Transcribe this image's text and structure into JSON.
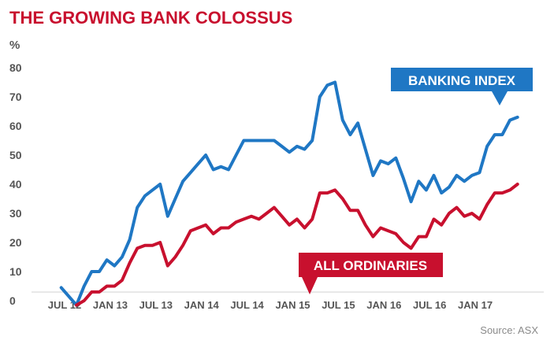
{
  "header": {
    "title": "THE GROWING BANK COLOSSUS",
    "title_color": "#c8102e"
  },
  "source": "Source: ASX",
  "chart_data": {
    "type": "line",
    "title": "THE GROWING BANK COLOSSUS",
    "xlabel": "",
    "ylabel": "%",
    "ylim": [
      0,
      80
    ],
    "y_ticks": [
      "0",
      "10",
      "20",
      "30",
      "40",
      "50",
      "60",
      "70",
      "80"
    ],
    "x_ticks": [
      {
        "label": "JUL 12",
        "x": 0
      },
      {
        "label": "JAN 13",
        "x": 6
      },
      {
        "label": "JUL 13",
        "x": 12
      },
      {
        "label": "JAN 14",
        "x": 18
      },
      {
        "label": "JUL 14",
        "x": 24
      },
      {
        "label": "JAN 15",
        "x": 30
      },
      {
        "label": "JUL 15",
        "x": 36
      },
      {
        "label": "JAN 16",
        "x": 42
      },
      {
        "label": "JUL 16",
        "x": 48
      },
      {
        "label": "JAN 17",
        "x": 54
      }
    ],
    "x_unit": "months since JUL 12",
    "xlim": [
      -2.5,
      59
    ],
    "grid": false,
    "legend": "inline callouts",
    "series": [
      {
        "name": "BANKING INDEX",
        "color": "#1f77c4",
        "points": [
          [
            -2,
            4.5
          ],
          [
            0,
            -1.5
          ],
          [
            1,
            5
          ],
          [
            2,
            10
          ],
          [
            3,
            10
          ],
          [
            4,
            14
          ],
          [
            5,
            12
          ],
          [
            6,
            15
          ],
          [
            7,
            21
          ],
          [
            8,
            32
          ],
          [
            9,
            36
          ],
          [
            10,
            38
          ],
          [
            11,
            40
          ],
          [
            12,
            29
          ],
          [
            13,
            35
          ],
          [
            14,
            41
          ],
          [
            15,
            44
          ],
          [
            16,
            47
          ],
          [
            17,
            50
          ],
          [
            18,
            45
          ],
          [
            19,
            46
          ],
          [
            20,
            45
          ],
          [
            21,
            50
          ],
          [
            22,
            55
          ],
          [
            23,
            55
          ],
          [
            24,
            55
          ],
          [
            25,
            55
          ],
          [
            26,
            55
          ],
          [
            27,
            53
          ],
          [
            28,
            51
          ],
          [
            29,
            53
          ],
          [
            30,
            52
          ],
          [
            31,
            55
          ],
          [
            32,
            70
          ],
          [
            33,
            74
          ],
          [
            34,
            75
          ],
          [
            35,
            62
          ],
          [
            36,
            57
          ],
          [
            37,
            61
          ],
          [
            38,
            52
          ],
          [
            39,
            43
          ],
          [
            40,
            48
          ],
          [
            41,
            47
          ],
          [
            42,
            49
          ],
          [
            43,
            42
          ],
          [
            44,
            34
          ],
          [
            45,
            41
          ],
          [
            46,
            38
          ],
          [
            47,
            43
          ],
          [
            48,
            37
          ],
          [
            49,
            39
          ],
          [
            50,
            43
          ],
          [
            51,
            41
          ],
          [
            52,
            43
          ],
          [
            53,
            44
          ],
          [
            54,
            53
          ],
          [
            55,
            57
          ],
          [
            56,
            57
          ],
          [
            57,
            62
          ],
          [
            58,
            63
          ]
        ]
      },
      {
        "name": "ALL ORDINARIES",
        "color": "#c8102e",
        "points": [
          [
            0,
            -1.5
          ],
          [
            1,
            0
          ],
          [
            2,
            3
          ],
          [
            3,
            3
          ],
          [
            4,
            5
          ],
          [
            5,
            5
          ],
          [
            6,
            7
          ],
          [
            7,
            13
          ],
          [
            8,
            18
          ],
          [
            9,
            19
          ],
          [
            10,
            19
          ],
          [
            11,
            20
          ],
          [
            12,
            12
          ],
          [
            13,
            15
          ],
          [
            14,
            19
          ],
          [
            15,
            24
          ],
          [
            16,
            25
          ],
          [
            17,
            26
          ],
          [
            18,
            23
          ],
          [
            19,
            25
          ],
          [
            20,
            25
          ],
          [
            21,
            27
          ],
          [
            22,
            28
          ],
          [
            23,
            29
          ],
          [
            24,
            28
          ],
          [
            25,
            30
          ],
          [
            26,
            32
          ],
          [
            27,
            29
          ],
          [
            28,
            26
          ],
          [
            29,
            28
          ],
          [
            30,
            25
          ],
          [
            31,
            28
          ],
          [
            32,
            37
          ],
          [
            33,
            37
          ],
          [
            34,
            38
          ],
          [
            35,
            35
          ],
          [
            36,
            31
          ],
          [
            37,
            31
          ],
          [
            38,
            26
          ],
          [
            39,
            22
          ],
          [
            40,
            25
          ],
          [
            41,
            24
          ],
          [
            42,
            23
          ],
          [
            43,
            20
          ],
          [
            44,
            18
          ],
          [
            45,
            22
          ],
          [
            46,
            22
          ],
          [
            47,
            28
          ],
          [
            48,
            26
          ],
          [
            49,
            30
          ],
          [
            50,
            32
          ],
          [
            51,
            29
          ],
          [
            52,
            30
          ],
          [
            53,
            28
          ],
          [
            54,
            33
          ],
          [
            55,
            37
          ],
          [
            56,
            37
          ],
          [
            57,
            38
          ],
          [
            58,
            40
          ]
        ]
      }
    ],
    "annotations": [
      {
        "text": "BANKING INDEX",
        "series": "BANKING INDEX"
      },
      {
        "text": "ALL ORDINARIES",
        "series": "ALL ORDINARIES"
      }
    ]
  }
}
